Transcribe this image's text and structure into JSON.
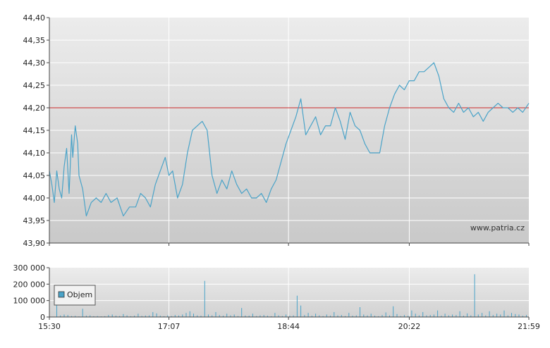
{
  "chart_data": [
    {
      "type": "line",
      "title": "",
      "xlabel": "",
      "ylabel": "",
      "ylim": [
        43.9,
        44.4
      ],
      "y_ticks": [
        "44,40",
        "44,35",
        "44,30",
        "44,25",
        "44,20",
        "44,15",
        "44,10",
        "44,05",
        "44,00",
        "43,95",
        "43,90"
      ],
      "y_tick_values": [
        44.4,
        44.35,
        44.3,
        44.25,
        44.2,
        44.15,
        44.1,
        44.05,
        44.0,
        43.95,
        43.9
      ],
      "x_ticks": [
        "15:30",
        "17:07",
        "18:44",
        "20:22",
        "21:59"
      ],
      "x_tick_minutes": [
        0,
        97,
        194,
        292,
        389
      ],
      "x_range_minutes": [
        0,
        389
      ],
      "reference_line": {
        "value": 44.2,
        "color": "#cc2a2a"
      },
      "grid": true,
      "watermark": "www.patria.cz",
      "line_color": "#4aa3c8",
      "series": [
        {
          "x": [
            0,
            2,
            4,
            6,
            8,
            10,
            12,
            14,
            16,
            18,
            19,
            21,
            23,
            24,
            27,
            30,
            34,
            38,
            42,
            46,
            50,
            55,
            60,
            65,
            70,
            74,
            78,
            82,
            86,
            90,
            94,
            97,
            100,
            104,
            108,
            112,
            116,
            120,
            124,
            128,
            132,
            136,
            140,
            144,
            148,
            152,
            156,
            160,
            164,
            168,
            172,
            176,
            180,
            184,
            188,
            192,
            196,
            200,
            204,
            208,
            212,
            216,
            220,
            224,
            228,
            232,
            236,
            240,
            244,
            248,
            252,
            256,
            260,
            264,
            268,
            272,
            276,
            280,
            284,
            288,
            292,
            296,
            300,
            304,
            308,
            312,
            316,
            320,
            324,
            328,
            332,
            336,
            340,
            344,
            348,
            352,
            356,
            360,
            364,
            368,
            372,
            376,
            380,
            384,
            389
          ],
          "y": [
            44.06,
            44.03,
            43.99,
            44.06,
            44.02,
            44.0,
            44.07,
            44.11,
            44.01,
            44.14,
            44.09,
            44.16,
            44.12,
            44.05,
            44.02,
            43.96,
            43.99,
            44.0,
            43.99,
            44.01,
            43.99,
            44.0,
            43.96,
            43.98,
            43.98,
            44.01,
            44.0,
            43.98,
            44.03,
            44.06,
            44.09,
            44.05,
            44.06,
            44.0,
            44.03,
            44.1,
            44.15,
            44.16,
            44.17,
            44.15,
            44.05,
            44.01,
            44.04,
            44.02,
            44.06,
            44.03,
            44.01,
            44.02,
            44.0,
            44.0,
            44.01,
            43.99,
            44.02,
            44.04,
            44.08,
            44.12,
            44.15,
            44.18,
            44.22,
            44.14,
            44.16,
            44.18,
            44.14,
            44.16,
            44.16,
            44.2,
            44.17,
            44.13,
            44.19,
            44.16,
            44.15,
            44.12,
            44.1,
            44.1,
            44.1,
            44.16,
            44.2,
            44.23,
            44.25,
            44.24,
            44.26,
            44.26,
            44.28,
            44.28,
            44.29,
            44.3,
            44.27,
            44.22,
            44.2,
            44.19,
            44.21,
            44.19,
            44.2,
            44.18,
            44.19,
            44.17,
            44.19,
            44.2,
            44.21,
            44.2,
            44.2,
            44.19,
            44.2,
            44.19,
            44.21
          ]
        }
      ]
    },
    {
      "type": "bar",
      "title": "",
      "xlabel": "",
      "ylabel": "",
      "ylim": [
        0,
        300000
      ],
      "y_ticks": [
        "300 000",
        "200 000",
        "100 000",
        "0"
      ],
      "y_tick_values": [
        300000,
        200000,
        100000,
        0
      ],
      "x_ticks": [
        "15:30",
        "17:07",
        "18:44",
        "20:22",
        "21:59"
      ],
      "x_tick_minutes": [
        0,
        97,
        194,
        292,
        389
      ],
      "grid": true,
      "legend": {
        "position": "left",
        "entries": [
          "Objem"
        ]
      },
      "bar_color": "#4aa3c8",
      "series": [
        {
          "name": "Objem",
          "x": [
            0,
            3,
            6,
            9,
            12,
            15,
            18,
            21,
            24,
            27,
            30,
            33,
            36,
            39,
            42,
            45,
            48,
            51,
            54,
            57,
            60,
            63,
            66,
            69,
            72,
            75,
            78,
            81,
            84,
            87,
            90,
            93,
            96,
            99,
            102,
            105,
            108,
            111,
            114,
            117,
            120,
            123,
            126,
            129,
            132,
            135,
            138,
            141,
            144,
            147,
            150,
            153,
            156,
            159,
            162,
            165,
            168,
            171,
            174,
            177,
            180,
            183,
            186,
            189,
            192,
            195,
            198,
            201,
            204,
            207,
            210,
            213,
            216,
            219,
            222,
            225,
            228,
            231,
            234,
            237,
            240,
            243,
            246,
            249,
            252,
            255,
            258,
            261,
            264,
            267,
            270,
            273,
            276,
            279,
            282,
            285,
            288,
            291,
            294,
            297,
            300,
            303,
            306,
            309,
            312,
            315,
            318,
            321,
            324,
            327,
            330,
            333,
            336,
            339,
            342,
            345,
            348,
            351,
            354,
            357,
            360,
            363,
            366,
            369,
            372,
            375,
            378,
            381,
            384,
            387
          ],
          "values": [
            6000,
            2000,
            80000,
            9000,
            15000,
            12000,
            6000,
            7000,
            4000,
            50000,
            8000,
            10000,
            5000,
            6000,
            4000,
            5000,
            12000,
            15000,
            8000,
            6000,
            18000,
            10000,
            5000,
            8000,
            20000,
            7000,
            9000,
            10000,
            30000,
            22000,
            8000,
            5000,
            10000,
            6000,
            12000,
            9000,
            15000,
            25000,
            35000,
            20000,
            10000,
            8000,
            220000,
            15000,
            10000,
            30000,
            12000,
            8000,
            20000,
            10000,
            15000,
            6000,
            55000,
            9000,
            8000,
            20000,
            6000,
            10000,
            12000,
            8000,
            5000,
            25000,
            10000,
            6000,
            15000,
            8000,
            10000,
            130000,
            70000,
            12000,
            25000,
            8000,
            20000,
            10000,
            6000,
            15000,
            8000,
            30000,
            10000,
            12000,
            6000,
            25000,
            8000,
            10000,
            60000,
            15000,
            10000,
            20000,
            8000,
            5000,
            12000,
            28000,
            10000,
            65000,
            18000,
            6000,
            12000,
            8000,
            40000,
            20000,
            10000,
            30000,
            10000,
            12000,
            15000,
            40000,
            8000,
            20000,
            10000,
            15000,
            12000,
            35000,
            8000,
            22000,
            10000,
            260000,
            15000,
            25000,
            10000,
            35000,
            12000,
            20000,
            15000,
            40000,
            10000,
            25000,
            18000,
            15000,
            8000,
            12000
          ]
        }
      ]
    }
  ]
}
